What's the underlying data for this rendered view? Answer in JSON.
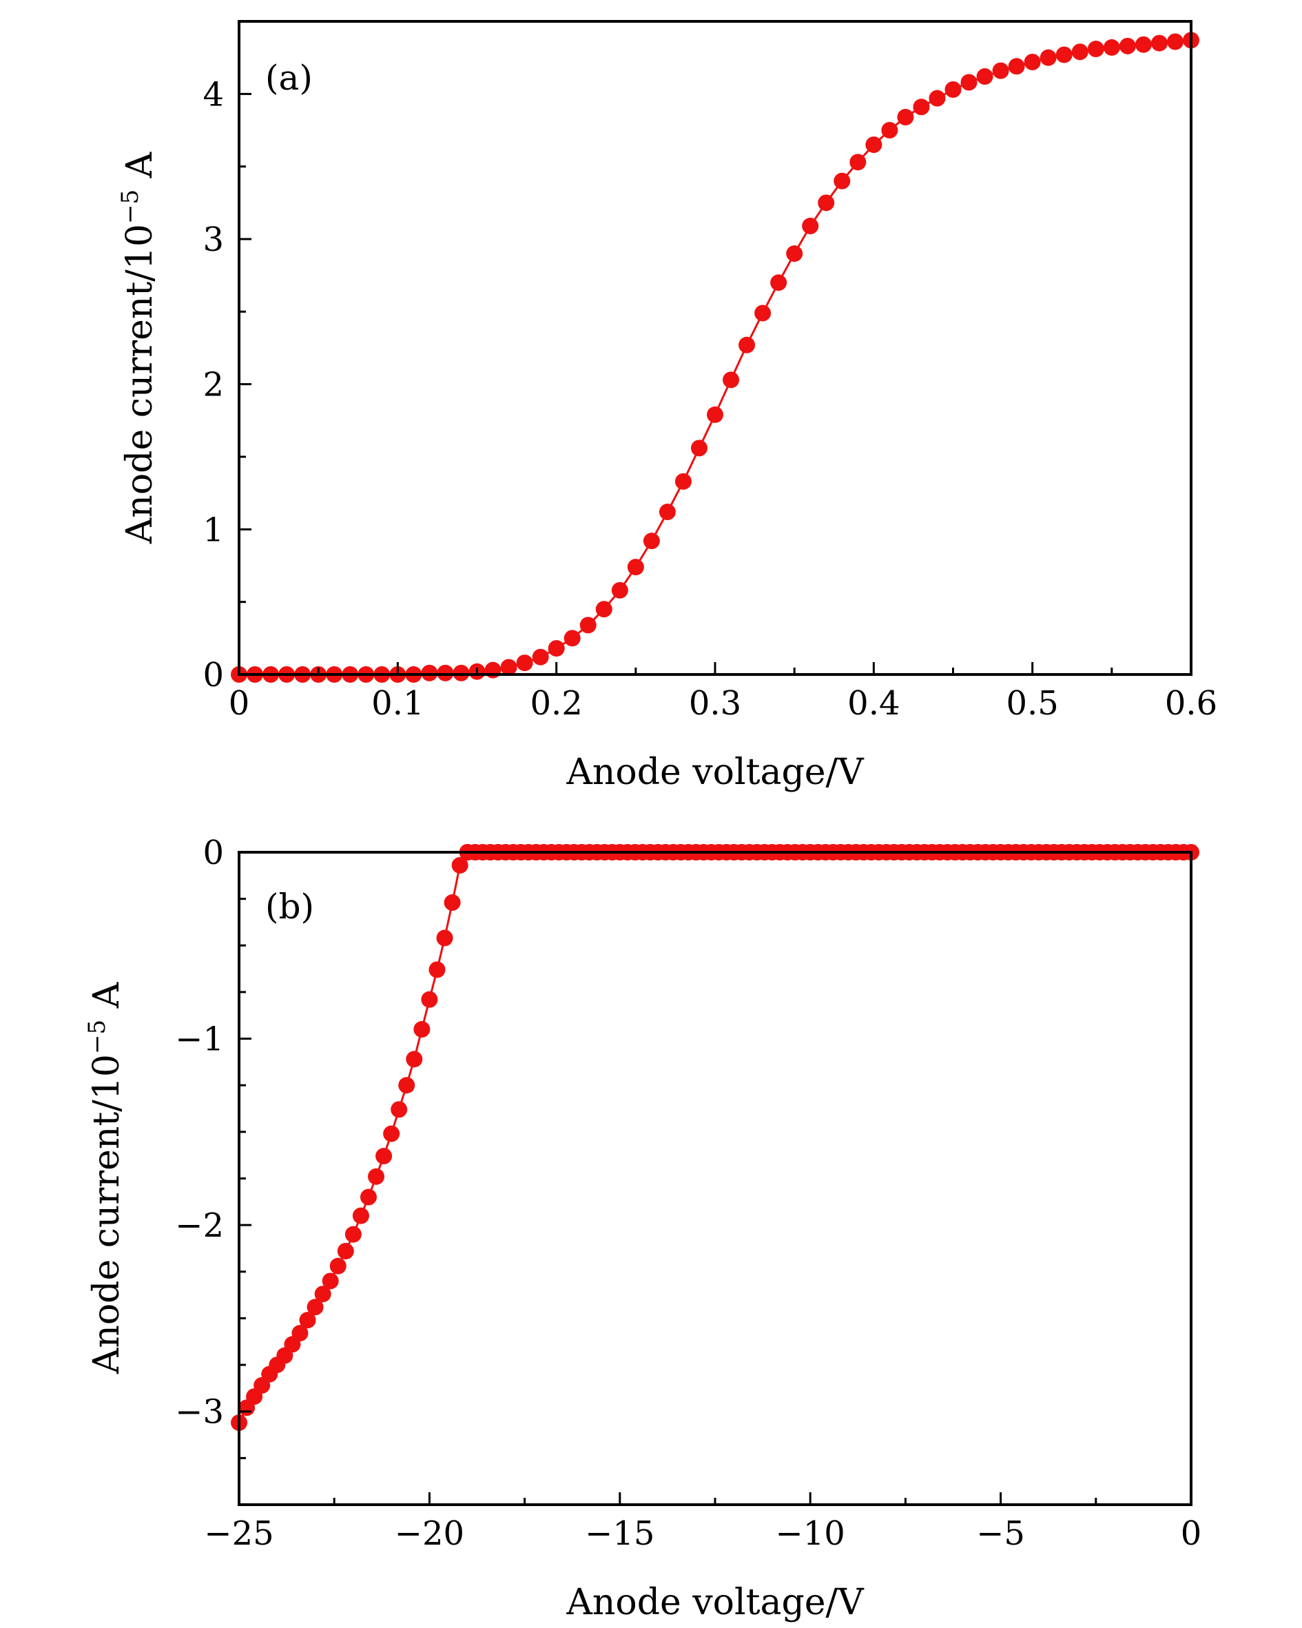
{
  "chart_data": [
    {
      "type": "scatter",
      "panel_label": "(a)",
      "xlabel": "Anode voltage/V",
      "ylabel_main": "Anode current/10",
      "ylabel_exponent": "−5",
      "ylabel_unit": " A",
      "xlim": [
        0,
        0.6
      ],
      "ylim": [
        0,
        4.5
      ],
      "xticks": [
        0,
        0.1,
        0.2,
        0.3,
        0.4,
        0.5,
        0.6
      ],
      "xtick_labels": [
        "0",
        "0.1",
        "0.2",
        "0.3",
        "0.4",
        "0.5",
        "0.6"
      ],
      "yticks": [
        0,
        1,
        2,
        3,
        4
      ],
      "ytick_labels": [
        "0",
        "1",
        "2",
        "3",
        "4"
      ],
      "grid": false,
      "series": [
        {
          "color": "#ee1111",
          "marker": "circle",
          "line": true,
          "x": [
            0,
            0.01,
            0.02,
            0.03,
            0.04,
            0.05,
            0.06,
            0.07,
            0.08,
            0.09,
            0.1,
            0.11,
            0.12,
            0.13,
            0.14,
            0.15,
            0.16,
            0.17,
            0.18,
            0.19,
            0.2,
            0.21,
            0.22,
            0.23,
            0.24,
            0.25,
            0.26,
            0.27,
            0.28,
            0.29,
            0.3,
            0.31,
            0.32,
            0.33,
            0.34,
            0.35,
            0.36,
            0.37,
            0.38,
            0.39,
            0.4,
            0.41,
            0.42,
            0.43,
            0.44,
            0.45,
            0.46,
            0.47,
            0.48,
            0.49,
            0.5,
            0.51,
            0.52,
            0.53,
            0.54,
            0.55,
            0.56,
            0.57,
            0.58,
            0.59,
            0.6
          ],
          "y": [
            0,
            0,
            0,
            0,
            0,
            0,
            0,
            0,
            0,
            0,
            0,
            0,
            0.01,
            0.01,
            0.01,
            0.02,
            0.03,
            0.05,
            0.08,
            0.12,
            0.18,
            0.25,
            0.34,
            0.45,
            0.58,
            0.74,
            0.92,
            1.12,
            1.33,
            1.56,
            1.79,
            2.03,
            2.27,
            2.49,
            2.7,
            2.9,
            3.09,
            3.25,
            3.4,
            3.53,
            3.65,
            3.75,
            3.84,
            3.91,
            3.97,
            4.03,
            4.08,
            4.12,
            4.16,
            4.19,
            4.22,
            4.25,
            4.27,
            4.29,
            4.31,
            4.32,
            4.33,
            4.34,
            4.35,
            4.36,
            4.37
          ]
        }
      ]
    },
    {
      "type": "scatter",
      "panel_label": "(b)",
      "xlabel": "Anode voltage/V",
      "ylabel_main": "Anode current/10",
      "ylabel_exponent": "−5",
      "ylabel_unit": " A",
      "xlim": [
        -25,
        0
      ],
      "ylim": [
        -3.5,
        0
      ],
      "xticks": [
        -25,
        -20,
        -15,
        -10,
        -5,
        0
      ],
      "xtick_labels": [
        "−25",
        "−20",
        "−15",
        "−10",
        "−5",
        "0"
      ],
      "yticks": [
        -3,
        -2,
        -1,
        0
      ],
      "ytick_labels": [
        "−3",
        "−2",
        "−1",
        "0"
      ],
      "grid": false,
      "series": [
        {
          "color": "#ee1111",
          "marker": "circle",
          "line": true,
          "x": [
            -25,
            -24.8,
            -24.6,
            -24.4,
            -24.2,
            -24,
            -23.8,
            -23.6,
            -23.4,
            -23.2,
            -23,
            -22.8,
            -22.6,
            -22.4,
            -22.2,
            -22,
            -21.8,
            -21.6,
            -21.4,
            -21.2,
            -21,
            -20.8,
            -20.6,
            -20.4,
            -20.2,
            -20,
            -19.8,
            -19.6,
            -19.4,
            -19.2,
            -19
          ],
          "y": [
            -3.06,
            -2.98,
            -2.92,
            -2.86,
            -2.8,
            -2.75,
            -2.7,
            -2.64,
            -2.58,
            -2.51,
            -2.44,
            -2.37,
            -2.3,
            -2.22,
            -2.14,
            -2.05,
            -1.95,
            -1.85,
            -1.74,
            -1.63,
            -1.51,
            -1.38,
            -1.25,
            -1.11,
            -0.95,
            -0.79,
            -0.63,
            -0.46,
            -0.27,
            -0.07,
            0
          ]
        },
        {
          "color": "#ee1111",
          "marker": "circle",
          "line": true,
          "x": [
            -19,
            -18.8,
            -18.6,
            -18.4,
            -18.2,
            -18,
            -17.8,
            -17.6,
            -17.4,
            -17.2,
            -17,
            -16.8,
            -16.6,
            -16.4,
            -16.2,
            -16,
            -15.8,
            -15.6,
            -15.4,
            -15.2,
            -15,
            -14.8,
            -14.6,
            -14.4,
            -14.2,
            -14,
            -13.8,
            -13.6,
            -13.4,
            -13.2,
            -13,
            -12.8,
            -12.6,
            -12.4,
            -12.2,
            -12,
            -11.8,
            -11.6,
            -11.4,
            -11.2,
            -11,
            -10.8,
            -10.6,
            -10.4,
            -10.2,
            -10,
            -9.8,
            -9.6,
            -9.4,
            -9.2,
            -9,
            -8.8,
            -8.6,
            -8.4,
            -8.2,
            -8,
            -7.8,
            -7.6,
            -7.4,
            -7.2,
            -7,
            -6.8,
            -6.6,
            -6.4,
            -6.2,
            -6,
            -5.8,
            -5.6,
            -5.4,
            -5.2,
            -5,
            -4.8,
            -4.6,
            -4.4,
            -4.2,
            -4,
            -3.8,
            -3.6,
            -3.4,
            -3.2,
            -3,
            -2.8,
            -2.6,
            -2.4,
            -2.2,
            -2,
            -1.8,
            -1.6,
            -1.4,
            -1.2,
            -1,
            -0.8,
            -0.6,
            -0.4,
            -0.2,
            0
          ],
          "y": [
            0,
            0,
            0,
            0,
            0,
            0,
            0,
            0,
            0,
            0,
            0,
            0,
            0,
            0,
            0,
            0,
            0,
            0,
            0,
            0,
            0,
            0,
            0,
            0,
            0,
            0,
            0,
            0,
            0,
            0,
            0,
            0,
            0,
            0,
            0,
            0,
            0,
            0,
            0,
            0,
            0,
            0,
            0,
            0,
            0,
            0,
            0,
            0,
            0,
            0,
            0,
            0,
            0,
            0,
            0,
            0,
            0,
            0,
            0,
            0,
            0,
            0,
            0,
            0,
            0,
            0,
            0,
            0,
            0,
            0,
            0,
            0,
            0,
            0,
            0,
            0,
            0,
            0,
            0,
            0,
            0,
            0,
            0,
            0,
            0,
            0,
            0,
            0,
            0,
            0,
            0,
            0,
            0,
            0,
            0,
            0
          ]
        }
      ]
    }
  ]
}
